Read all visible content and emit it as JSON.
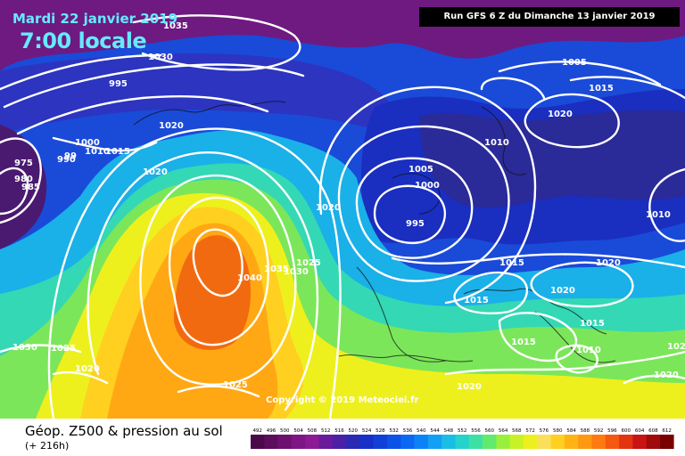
{
  "header": {
    "date": "Mardi 22 janvier 2019",
    "time": "7:00 locale",
    "run": "Run GFS 6 Z du Dimanche 13 janvier 2019"
  },
  "copyright": "Copyright © 2019 Meteociel.fr",
  "legend": {
    "title": "Géop. Z500 & pression au sol",
    "subtitle": "(+ 216h)",
    "values": [
      "492",
      "496",
      "500",
      "504",
      "508",
      "512",
      "516",
      "520",
      "524",
      "528",
      "532",
      "536",
      "540",
      "544",
      "548",
      "552",
      "556",
      "560",
      "564",
      "568",
      "572",
      "576",
      "580",
      "584",
      "588",
      "592",
      "596",
      "600",
      "604",
      "608",
      "612"
    ],
    "colors": [
      "#4a0a4a",
      "#5c0d5c",
      "#6e1070",
      "#7f1585",
      "#8c1a95",
      "#6a1a9a",
      "#4b20a6",
      "#2a2ab4",
      "#1830c8",
      "#1040d8",
      "#0a52e8",
      "#0b68f2",
      "#0d82f6",
      "#11a0f4",
      "#1abde6",
      "#26d2cc",
      "#3de0a4",
      "#62ea6e",
      "#98f03c",
      "#c8f226",
      "#eef01e",
      "#fae05a",
      "#ffd020",
      "#ffb414",
      "#ff9812",
      "#ff7a10",
      "#f55810",
      "#e23410",
      "#c81414",
      "#a00a0a",
      "#780000"
    ]
  },
  "isobars": [
    {
      "text": "1035"
    },
    {
      "text": "1030"
    },
    {
      "text": "995"
    },
    {
      "text": "1020"
    },
    {
      "text": "1000"
    },
    {
      "text": "99"
    },
    {
      "text": "990"
    },
    {
      "text": "1010"
    },
    {
      "text": "1015"
    },
    {
      "text": "975"
    },
    {
      "text": "980"
    },
    {
      "text": "985"
    },
    {
      "text": "1020"
    },
    {
      "text": "1040"
    },
    {
      "text": "1035"
    },
    {
      "text": "1030"
    },
    {
      "text": "1025"
    },
    {
      "text": "1020"
    },
    {
      "text": "1005"
    },
    {
      "text": "1000"
    },
    {
      "text": "995"
    },
    {
      "text": "1010"
    },
    {
      "text": "1005"
    },
    {
      "text": "1015"
    },
    {
      "text": "1020"
    },
    {
      "text": "1015"
    },
    {
      "text": "1020"
    },
    {
      "text": "1020"
    },
    {
      "text": "1015"
    },
    {
      "text": "1015"
    },
    {
      "text": "1010"
    },
    {
      "text": "1015"
    },
    {
      "text": "1020"
    },
    {
      "text": "1010"
    },
    {
      "text": "1030"
    },
    {
      "text": "1025"
    },
    {
      "text": "1020"
    },
    {
      "text": "1025"
    },
    {
      "text": "1020"
    },
    {
      "text": "1025"
    }
  ]
}
